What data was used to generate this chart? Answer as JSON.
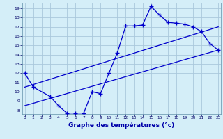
{
  "background_color": "#d4eef8",
  "grid_color": "#aac8dc",
  "line_color": "#0000cc",
  "xlabel": "Graphe des températures (°c)",
  "xlabel_color": "#0000aa",
  "yticks": [
    8,
    9,
    10,
    11,
    12,
    13,
    14,
    15,
    16,
    17,
    18,
    19
  ],
  "xticks": [
    0,
    1,
    2,
    3,
    4,
    5,
    6,
    7,
    8,
    9,
    10,
    11,
    12,
    13,
    14,
    15,
    16,
    17,
    18,
    19,
    20,
    21,
    22,
    23
  ],
  "xlim": [
    -0.3,
    23.3
  ],
  "ylim": [
    7.6,
    19.6
  ],
  "series1_x": [
    0,
    1,
    3,
    4,
    5,
    6,
    7,
    8,
    9,
    10,
    11,
    12,
    13,
    14,
    15,
    16,
    17,
    18,
    19,
    20,
    21,
    22,
    23
  ],
  "series1_y": [
    12.0,
    10.5,
    9.5,
    8.5,
    7.7,
    7.7,
    7.7,
    10.0,
    9.8,
    12.0,
    14.2,
    17.1,
    17.1,
    17.2,
    19.2,
    18.3,
    17.5,
    17.4,
    17.3,
    17.0,
    16.5,
    15.2,
    14.5
  ],
  "series2_x": [
    0,
    23
  ],
  "series2_y": [
    10.5,
    17.0
  ],
  "series3_x": [
    0,
    23
  ],
  "series3_y": [
    8.5,
    14.5
  ]
}
